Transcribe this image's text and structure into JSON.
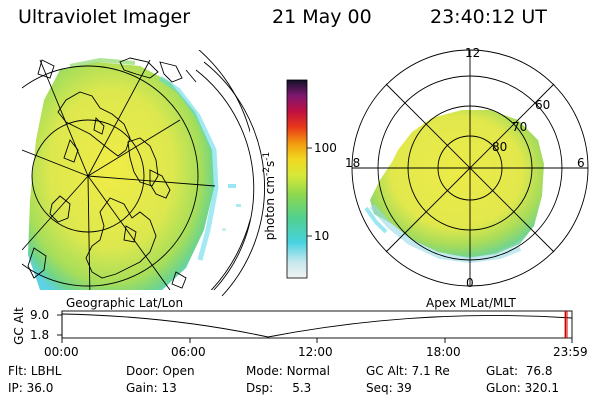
{
  "header": {
    "title": "Ultraviolet Imager",
    "date": "21 May 00",
    "time": "23:40:12 UT"
  },
  "geo_panel": {
    "label": "Geographic Lat/Lon"
  },
  "apex_panel": {
    "label": "Apex MLat/MLT",
    "mlt_labels": [
      "12",
      "18",
      "6",
      "0"
    ],
    "lat_labels": [
      "60",
      "70",
      "80"
    ]
  },
  "colorbar": {
    "unit": "photon cm",
    "unit_exp1": "-2",
    "unit_s": "s",
    "unit_exp2": "-1",
    "ticks": [
      "100",
      "10"
    ],
    "scale": "log"
  },
  "timeline": {
    "ylabel": "GC Alt",
    "yticks": [
      "9.0",
      "1.8"
    ],
    "xticks": [
      "00:00",
      "06:00",
      "12:00",
      "18:00",
      "23:59"
    ],
    "current_time_hours": 23.67
  },
  "footer": {
    "row1": [
      {
        "key": "Flt:",
        "value": "LBHL"
      },
      {
        "key": "Door:",
        "value": "Open"
      },
      {
        "key": "Mode:",
        "value": "Normal"
      },
      {
        "key": "GC Alt:",
        "value": "7.1 Re"
      },
      {
        "key": "GLat:",
        "value": "76.8"
      }
    ],
    "row2": [
      {
        "key": "IP:",
        "value": "36.0"
      },
      {
        "key": "Gain:",
        "value": "13"
      },
      {
        "key": "Dsp:",
        "value": "5.3"
      },
      {
        "key": "Seq:",
        "value": "39"
      },
      {
        "key": "GLon:",
        "value": "320.1"
      }
    ]
  },
  "colors": {
    "aurora_yellow": "#e8e84a",
    "aurora_green": "#8fd86a",
    "aurora_cyan": "#56d7e8",
    "marker_red": "#d00000"
  }
}
